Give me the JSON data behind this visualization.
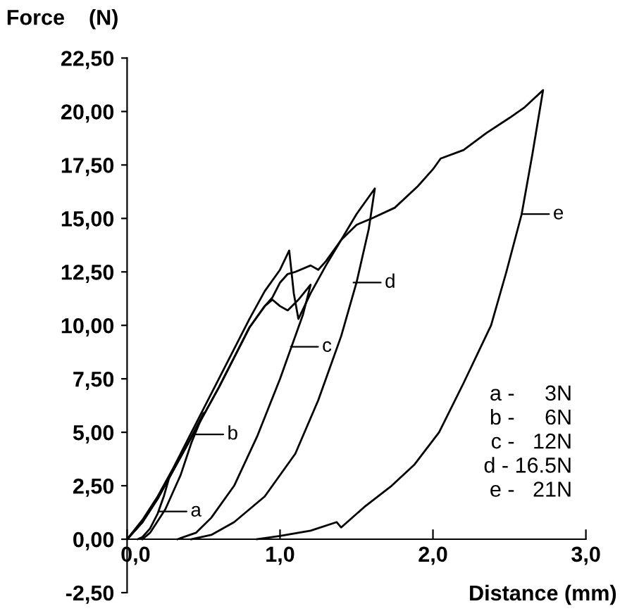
{
  "chart_data": {
    "type": "line",
    "xlabel": "Distance (mm)",
    "ylabel": "Force    (N)",
    "xlim": [
      0,
      3.0
    ],
    "ylim": [
      -2.5,
      22.5
    ],
    "xticks": [
      {
        "value": 0,
        "label": "0,0"
      },
      {
        "value": 1,
        "label": "1,0"
      },
      {
        "value": 2,
        "label": "2,0"
      },
      {
        "value": 3,
        "label": "3,0"
      }
    ],
    "yticks": [
      {
        "value": -2.5,
        "label": "-2,50"
      },
      {
        "value": 0,
        "label": "0,00"
      },
      {
        "value": 2.5,
        "label": "2,50"
      },
      {
        "value": 5,
        "label": "5,00"
      },
      {
        "value": 7.5,
        "label": "7,50"
      },
      {
        "value": 10,
        "label": "10,00"
      },
      {
        "value": 12.5,
        "label": "12,50"
      },
      {
        "value": 15,
        "label": "15,00"
      },
      {
        "value": 17.5,
        "label": "17,50"
      },
      {
        "value": 20,
        "label": "20,00"
      },
      {
        "value": 22.5,
        "label": "22,50"
      }
    ],
    "grid": false,
    "marker": "none",
    "line_style": "solid",
    "series": [
      {
        "color": "#000000",
        "x": [
          0,
          0.1,
          0.2,
          0.28,
          0.24,
          0.2,
          0.15,
          0.1,
          0.07
        ],
        "values": [
          0,
          0.8,
          1.9,
          3.0,
          2.0,
          1.2,
          0.5,
          0.1,
          0
        ]
      },
      {
        "color": "#000000",
        "x": [
          0,
          0.1,
          0.2,
          0.3,
          0.4,
          0.5,
          0.42,
          0.35,
          0.25,
          0.15,
          0.1
        ],
        "values": [
          0,
          0.8,
          1.9,
          3.2,
          4.5,
          5.9,
          4.5,
          3.0,
          1.4,
          0.3,
          0
        ]
      },
      {
        "color": "#000000",
        "x": [
          0,
          0.1,
          0.2,
          0.3,
          0.4,
          0.5,
          0.6,
          0.7,
          0.8,
          0.9,
          0.95,
          1.0,
          1.05,
          1.12,
          1.2,
          1.15,
          1.0,
          0.85,
          0.7,
          0.55,
          0.45,
          0.33
        ],
        "values": [
          0,
          0.8,
          1.9,
          3.2,
          4.5,
          5.8,
          7.1,
          8.5,
          9.9,
          10.9,
          11.2,
          10.9,
          10.7,
          11.2,
          11.9,
          10.5,
          7.5,
          4.8,
          2.5,
          1.0,
          0.3,
          0
        ]
      },
      {
        "color": "#000000",
        "x": [
          0,
          0.1,
          0.2,
          0.3,
          0.4,
          0.5,
          0.6,
          0.7,
          0.8,
          0.9,
          1.0,
          1.06,
          1.09,
          1.12,
          1.2,
          1.3,
          1.4,
          1.5,
          1.62,
          1.58,
          1.5,
          1.4,
          1.25,
          1.1,
          0.9,
          0.7,
          0.55,
          0.42
        ],
        "values": [
          0,
          0.9,
          2.0,
          3.3,
          4.7,
          6.1,
          7.5,
          8.9,
          10.3,
          11.6,
          12.6,
          13.5,
          11.5,
          10.3,
          11.5,
          12.8,
          14.0,
          15.2,
          16.4,
          14.5,
          12.0,
          9.5,
          6.5,
          4.0,
          2.0,
          0.8,
          0.2,
          0
        ]
      },
      {
        "color": "#000000",
        "x": [
          0,
          0.1,
          0.2,
          0.3,
          0.4,
          0.5,
          0.6,
          0.7,
          0.8,
          0.9,
          0.95,
          1.0,
          1.05,
          1.1,
          1.2,
          1.25,
          1.3,
          1.4,
          1.5,
          1.6,
          1.75,
          1.9,
          2.0,
          2.05,
          2.2,
          2.35,
          2.5,
          2.6,
          2.72,
          2.65,
          2.58,
          2.48,
          2.38,
          2.2,
          2.04,
          1.88,
          1.73,
          1.55,
          1.4,
          1.37,
          1.2,
          1.0,
          0.85
        ],
        "values": [
          0,
          0.8,
          1.9,
          3.2,
          4.5,
          5.8,
          7.1,
          8.5,
          9.9,
          10.9,
          11.3,
          12.0,
          12.4,
          12.5,
          12.8,
          12.6,
          13.0,
          14.0,
          14.7,
          15.0,
          15.5,
          16.5,
          17.3,
          17.8,
          18.2,
          19.0,
          19.7,
          20.2,
          21.0,
          18.0,
          15.2,
          12.5,
          10.0,
          7.3,
          5.0,
          3.5,
          2.5,
          1.5,
          0.55,
          0.8,
          0.4,
          0.15,
          0
        ]
      }
    ],
    "annotations": [
      {
        "text": "a",
        "x": 0.21,
        "y": 1.3
      },
      {
        "text": "b",
        "x": 0.45,
        "y": 4.9
      },
      {
        "text": "c",
        "x": 1.07,
        "y": 9.0
      },
      {
        "text": "d",
        "x": 1.48,
        "y": 12.0
      },
      {
        "text": "e",
        "x": 2.58,
        "y": 15.2
      },
      "a -     3N",
      "b -     6N",
      "c -   12N",
      "d - 16.5N",
      "e -   21N"
    ]
  }
}
